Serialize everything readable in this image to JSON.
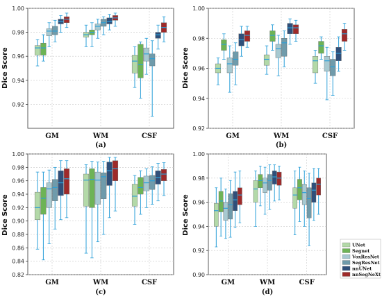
{
  "chart_data": [
    {
      "type": "box",
      "panel_label": "(a)",
      "ylabel": "Dice Score",
      "ylim": [
        0.9,
        1.0
      ],
      "yticks": [
        "0.92",
        "0.94",
        "0.96",
        "0.98",
        "1.00"
      ],
      "categories": [
        "GM",
        "WM",
        "CSF"
      ],
      "grid": true,
      "series": [
        {
          "name": "UNet",
          "boxes": [
            {
              "wlo": 0.952,
              "q1": 0.961,
              "med": 0.967,
              "q3": 0.969,
              "whi": 0.974
            },
            {
              "wlo": 0.968,
              "q1": 0.976,
              "med": 0.978,
              "q3": 0.98,
              "whi": 0.986
            },
            {
              "wlo": 0.934,
              "q1": 0.946,
              "med": 0.956,
              "q3": 0.961,
              "whi": 0.968
            }
          ]
        },
        {
          "name": "Segnet",
          "boxes": [
            {
              "wlo": 0.956,
              "q1": 0.961,
              "med": 0.967,
              "q3": 0.971,
              "whi": 0.978
            },
            {
              "wlo": 0.968,
              "q1": 0.978,
              "med": 0.98,
              "q3": 0.982,
              "whi": 0.988
            },
            {
              "wlo": 0.925,
              "q1": 0.942,
              "med": 0.953,
              "q3": 0.97,
              "whi": 0.972
            }
          ]
        },
        {
          "name": "VoxResNet",
          "boxes": [
            {
              "wlo": 0.968,
              "q1": 0.977,
              "med": 0.981,
              "q3": 0.983,
              "whi": 0.988
            },
            {
              "wlo": 0.975,
              "q1": 0.982,
              "med": 0.985,
              "q3": 0.987,
              "whi": 0.991
            },
            {
              "wlo": 0.945,
              "q1": 0.956,
              "med": 0.962,
              "q3": 0.967,
              "whi": 0.975
            }
          ]
        },
        {
          "name": "SegResNet",
          "boxes": [
            {
              "wlo": 0.972,
              "q1": 0.978,
              "med": 0.981,
              "q3": 0.985,
              "whi": 0.99
            },
            {
              "wlo": 0.978,
              "q1": 0.985,
              "med": 0.988,
              "q3": 0.991,
              "whi": 0.993
            },
            {
              "wlo": 0.91,
              "q1": 0.952,
              "med": 0.958,
              "q3": 0.962,
              "whi": 0.973
            }
          ]
        },
        {
          "name": "nnUNet",
          "boxes": [
            {
              "wlo": 0.98,
              "q1": 0.987,
              "med": 0.989,
              "q3": 0.991,
              "whi": 0.994
            },
            {
              "wlo": 0.982,
              "q1": 0.987,
              "med": 0.989,
              "q3": 0.992,
              "whi": 0.995
            },
            {
              "wlo": 0.966,
              "q1": 0.975,
              "med": 0.978,
              "q3": 0.98,
              "whi": 0.986
            }
          ]
        },
        {
          "name": "nnSegNeXt",
          "boxes": [
            {
              "wlo": 0.984,
              "q1": 0.988,
              "med": 0.991,
              "q3": 0.993,
              "whi": 0.996
            },
            {
              "wlo": 0.985,
              "q1": 0.99,
              "med": 0.992,
              "q3": 0.994,
              "whi": 0.996
            },
            {
              "wlo": 0.972,
              "q1": 0.98,
              "med": 0.984,
              "q3": 0.988,
              "whi": 0.993
            }
          ]
        }
      ]
    },
    {
      "type": "box",
      "panel_label": "(b)",
      "ylabel": "Dice Score",
      "ylim": [
        0.92,
        1.0
      ],
      "yticks": [
        "0.92",
        "0.94",
        "0.96",
        "0.98",
        "1.00"
      ],
      "categories": [
        "GM",
        "WM",
        "CSF"
      ],
      "grid": true,
      "series": [
        {
          "name": "UNet",
          "boxes": [
            {
              "wlo": 0.949,
              "q1": 0.957,
              "med": 0.96,
              "q3": 0.963,
              "whi": 0.967
            },
            {
              "wlo": 0.956,
              "q1": 0.962,
              "med": 0.966,
              "q3": 0.969,
              "whi": 0.975
            },
            {
              "wlo": 0.95,
              "q1": 0.957,
              "med": 0.965,
              "q3": 0.968,
              "whi": 0.972
            }
          ]
        },
        {
          "name": "Segnet",
          "boxes": [
            {
              "wlo": 0.966,
              "q1": 0.972,
              "med": 0.976,
              "q3": 0.979,
              "whi": 0.983
            },
            {
              "wlo": 0.972,
              "q1": 0.978,
              "med": 0.982,
              "q3": 0.985,
              "whi": 0.989
            },
            {
              "wlo": 0.966,
              "q1": 0.97,
              "med": 0.975,
              "q3": 0.978,
              "whi": 0.981
            }
          ]
        },
        {
          "name": "VoxResNet",
          "boxes": [
            {
              "wlo": 0.944,
              "q1": 0.957,
              "med": 0.963,
              "q3": 0.967,
              "whi": 0.975
            },
            {
              "wlo": 0.955,
              "q1": 0.967,
              "med": 0.973,
              "q3": 0.976,
              "whi": 0.982
            },
            {
              "wlo": 0.939,
              "q1": 0.958,
              "med": 0.965,
              "q3": 0.968,
              "whi": 0.974
            }
          ]
        },
        {
          "name": "SegResNet",
          "boxes": [
            {
              "wlo": 0.949,
              "q1": 0.962,
              "med": 0.966,
              "q3": 0.971,
              "whi": 0.977
            },
            {
              "wlo": 0.961,
              "q1": 0.968,
              "med": 0.977,
              "q3": 0.98,
              "whi": 0.985
            },
            {
              "wlo": 0.942,
              "q1": 0.955,
              "med": 0.961,
              "q3": 0.966,
              "whi": 0.971
            }
          ]
        },
        {
          "name": "nnUNet",
          "boxes": [
            {
              "wlo": 0.968,
              "q1": 0.975,
              "med": 0.979,
              "q3": 0.983,
              "whi": 0.988
            },
            {
              "wlo": 0.976,
              "q1": 0.983,
              "med": 0.987,
              "q3": 0.99,
              "whi": 0.993
            },
            {
              "wlo": 0.958,
              "q1": 0.965,
              "med": 0.97,
              "q3": 0.974,
              "whi": 0.981
            }
          ]
        },
        {
          "name": "nnSegNeXt",
          "boxes": [
            {
              "wlo": 0.974,
              "q1": 0.978,
              "med": 0.982,
              "q3": 0.985,
              "whi": 0.988
            },
            {
              "wlo": 0.978,
              "q1": 0.983,
              "med": 0.987,
              "q3": 0.989,
              "whi": 0.992
            },
            {
              "wlo": 0.972,
              "q1": 0.978,
              "med": 0.983,
              "q3": 0.986,
              "whi": 0.99
            }
          ]
        }
      ]
    },
    {
      "type": "box",
      "panel_label": "(c)",
      "ylabel": "Dice Score",
      "ylim": [
        0.82,
        1.0
      ],
      "yticks": [
        "0.82",
        "0.84",
        "0.86",
        "0.88",
        "0.90",
        "0.92",
        "0.94",
        "0.96",
        "0.98",
        "1.00"
      ],
      "categories": [
        "GM",
        "WM",
        "CSF"
      ],
      "grid": true,
      "series": [
        {
          "name": "UNet",
          "boxes": [
            {
              "wlo": 0.858,
              "q1": 0.902,
              "med": 0.92,
              "q3": 0.943,
              "whi": 0.973
            },
            {
              "wlo": 0.852,
              "q1": 0.922,
              "med": 0.961,
              "q3": 0.97,
              "whi": 0.984
            },
            {
              "wlo": 0.895,
              "q1": 0.922,
              "med": 0.937,
              "q3": 0.955,
              "whi": 0.968
            }
          ]
        },
        {
          "name": "Segnet",
          "boxes": [
            {
              "wlo": 0.842,
              "q1": 0.91,
              "med": 0.934,
              "q3": 0.95,
              "whi": 0.973
            },
            {
              "wlo": 0.845,
              "q1": 0.92,
              "med": 0.962,
              "q3": 0.978,
              "whi": 0.989
            },
            {
              "wlo": 0.91,
              "q1": 0.94,
              "med": 0.95,
              "q3": 0.965,
              "whi": 0.975
            }
          ]
        },
        {
          "name": "VoxResNet",
          "boxes": [
            {
              "wlo": 0.866,
              "q1": 0.92,
              "med": 0.948,
              "q3": 0.957,
              "whi": 0.976
            },
            {
              "wlo": 0.869,
              "q1": 0.925,
              "med": 0.961,
              "q3": 0.973,
              "whi": 0.988
            },
            {
              "wlo": 0.92,
              "q1": 0.945,
              "med": 0.957,
              "q3": 0.967,
              "whi": 0.978
            }
          ]
        },
        {
          "name": "SegResNet",
          "boxes": [
            {
              "wlo": 0.888,
              "q1": 0.93,
              "med": 0.95,
              "q3": 0.962,
              "whi": 0.98
            },
            {
              "wlo": 0.88,
              "q1": 0.933,
              "med": 0.966,
              "q3": 0.972,
              "whi": 0.989
            },
            {
              "wlo": 0.925,
              "q1": 0.947,
              "med": 0.96,
              "q3": 0.968,
              "whi": 0.981
            }
          ]
        },
        {
          "name": "nnUNet",
          "boxes": [
            {
              "wlo": 0.902,
              "q1": 0.938,
              "med": 0.957,
              "q3": 0.975,
              "whi": 0.99
            },
            {
              "wlo": 0.905,
              "q1": 0.953,
              "med": 0.975,
              "q3": 0.988,
              "whi": 0.995
            },
            {
              "wlo": 0.93,
              "q1": 0.955,
              "med": 0.965,
              "q3": 0.975,
              "whi": 0.986
            }
          ]
        },
        {
          "name": "nnSegNeXt",
          "boxes": [
            {
              "wlo": 0.905,
              "q1": 0.94,
              "med": 0.963,
              "q3": 0.978,
              "whi": 0.99
            },
            {
              "wlo": 0.915,
              "q1": 0.96,
              "med": 0.978,
              "q3": 0.99,
              "whi": 0.995
            },
            {
              "wlo": 0.938,
              "q1": 0.96,
              "med": 0.97,
              "q3": 0.977,
              "whi": 0.987
            }
          ]
        }
      ]
    },
    {
      "type": "box",
      "panel_label": "(d)",
      "ylabel": "Dice Score",
      "ylim": [
        0.9,
        1.0
      ],
      "yticks": [
        "0.90",
        "0.92",
        "0.94",
        "0.96",
        "0.98",
        "1.00"
      ],
      "categories": [
        "GM",
        "WM",
        "CSF"
      ],
      "grid": true,
      "legend": "right",
      "series": [
        {
          "name": "UNet",
          "boxes": [
            {
              "wlo": 0.923,
              "q1": 0.94,
              "med": 0.953,
              "q3": 0.959,
              "whi": 0.972
            },
            {
              "wlo": 0.94,
              "q1": 0.96,
              "med": 0.971,
              "q3": 0.978,
              "whi": 0.986
            },
            {
              "wlo": 0.933,
              "q1": 0.955,
              "med": 0.966,
              "q3": 0.972,
              "whi": 0.986
            }
          ]
        },
        {
          "name": "Segnet",
          "boxes": [
            {
              "wlo": 0.932,
              "q1": 0.952,
              "med": 0.961,
              "q3": 0.969,
              "whi": 0.98
            },
            {
              "wlo": 0.957,
              "q1": 0.972,
              "med": 0.978,
              "q3": 0.983,
              "whi": 0.99
            },
            {
              "wlo": 0.944,
              "q1": 0.962,
              "med": 0.972,
              "q3": 0.979,
              "whi": 0.989
            }
          ]
        },
        {
          "name": "VoxResNet",
          "boxes": [
            {
              "wlo": 0.93,
              "q1": 0.945,
              "med": 0.955,
              "q3": 0.96,
              "whi": 0.971
            },
            {
              "wlo": 0.95,
              "q1": 0.968,
              "med": 0.976,
              "q3": 0.98,
              "whi": 0.989
            },
            {
              "wlo": 0.94,
              "q1": 0.958,
              "med": 0.968,
              "q3": 0.975,
              "whi": 0.986
            }
          ]
        },
        {
          "name": "SegResNet",
          "boxes": [
            {
              "wlo": 0.931,
              "q1": 0.946,
              "med": 0.958,
              "q3": 0.967,
              "whi": 0.978
            },
            {
              "wlo": 0.954,
              "q1": 0.97,
              "med": 0.978,
              "q3": 0.983,
              "whi": 0.991
            },
            {
              "wlo": 0.924,
              "q1": 0.947,
              "med": 0.963,
              "q3": 0.972,
              "whi": 0.984
            }
          ]
        },
        {
          "name": "nnUNet",
          "boxes": [
            {
              "wlo": 0.939,
              "q1": 0.953,
              "med": 0.962,
              "q3": 0.969,
              "whi": 0.985
            },
            {
              "wlo": 0.961,
              "q1": 0.975,
              "med": 0.981,
              "q3": 0.986,
              "whi": 0.991
            },
            {
              "wlo": 0.945,
              "q1": 0.96,
              "med": 0.97,
              "q3": 0.976,
              "whi": 0.988
            }
          ]
        },
        {
          "name": "nnSegNeXt",
          "boxes": [
            {
              "wlo": 0.943,
              "q1": 0.958,
              "med": 0.966,
              "q3": 0.972,
              "whi": 0.986
            },
            {
              "wlo": 0.962,
              "q1": 0.974,
              "med": 0.98,
              "q3": 0.985,
              "whi": 0.99
            },
            {
              "wlo": 0.95,
              "q1": 0.966,
              "med": 0.975,
              "q3": 0.98,
              "whi": 0.988
            }
          ]
        }
      ]
    }
  ],
  "legend": {
    "items": [
      {
        "name": "UNet",
        "color": "#b3d9a8"
      },
      {
        "name": "Segnet",
        "color": "#6db356"
      },
      {
        "name": "VoxResNet",
        "color": "#a7c9d1"
      },
      {
        "name": "SegResNet",
        "color": "#6f9bab"
      },
      {
        "name": "nnUNet",
        "color": "#2f4f7a"
      },
      {
        "name": "nnSegNeXt",
        "color": "#9e2a2a"
      }
    ]
  },
  "colors": {
    "box_edge": "#666666",
    "median": "#2a9fd8",
    "whisker": "#2a9fd8",
    "grid": "#c8c8c8",
    "outlier": "#666666"
  }
}
